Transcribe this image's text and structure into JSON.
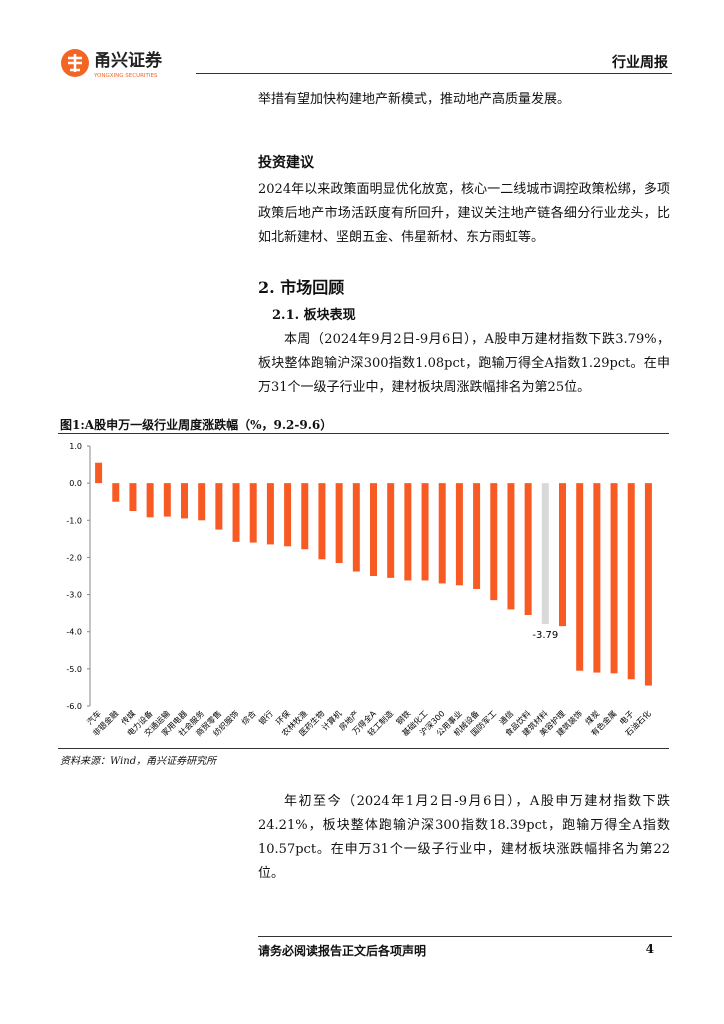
{
  "header": {
    "company": "甬兴证券",
    "company_en": "YONGXING SECURITIES",
    "report_type": "行业周报"
  },
  "body": {
    "intro": "举措有望加快构建地产新模式，推动地产高质量发展。",
    "heading_1": "投资建议",
    "paragraph_1": "2024年以来政策面明显优化放宽，核心一二线城市调控政策松绑，多项政策后地产市场活跃度有所回升，建议关注地产链各细分行业龙头，比如北新建材、坚朗五金、伟星新材、东方雨虹等。",
    "heading_2": "2. 市场回顾",
    "heading_3": "2.1. 板块表现",
    "paragraph_2": "本周（2024年9月2日-9月6日），A股申万建材指数下跌3.79%，板块整体跑输沪深300指数1.08pct，跑输万得全A指数1.29pct。在申万31个一级子行业中，建材板块周涨跌幅排名为第25位。",
    "source": "资料来源：Wind，甬兴证券研究所",
    "paragraph_3": "年初至今（2024年1月2日-9月6日），A股申万建材指数下跌24.21%，板块整体跑输沪深300指数18.39pct，跑输万得全A指数10.57pct。在申万31个一级子行业中，建材板块涨跌幅排名为第22位。"
  },
  "chart_data": {
    "type": "bar",
    "title": "图1:A股申万一级行业周度涨跌幅（%，9.2-9.6）",
    "categories": [
      "汽车",
      "非银金融",
      "传媒",
      "电力设备",
      "交通运输",
      "家用电器",
      "社会服务",
      "商贸零售",
      "纺织服饰",
      "综合",
      "银行",
      "环保",
      "农林牧渔",
      "医药生物",
      "计算机",
      "房地产",
      "万得全A",
      "轻工制造",
      "钢铁",
      "基础化工",
      "沪深300",
      "公用事业",
      "机械设备",
      "国防军工",
      "通信",
      "食品饮料",
      "建筑材料",
      "美容护理",
      "建筑装饰",
      "煤炭",
      "有色金属",
      "电子",
      "石油石化"
    ],
    "values": [
      0.55,
      -0.5,
      -0.75,
      -0.92,
      -0.9,
      -0.95,
      -1.0,
      -1.25,
      -1.58,
      -1.6,
      -1.65,
      -1.7,
      -1.78,
      -2.05,
      -2.15,
      -2.38,
      -2.5,
      -2.55,
      -2.62,
      -2.62,
      -2.7,
      -2.75,
      -2.85,
      -3.15,
      -3.4,
      -3.55,
      -3.79,
      -3.85,
      -5.05,
      -5.1,
      -5.12,
      -5.28,
      -5.45
    ],
    "value_labels": [
      null,
      null,
      null,
      null,
      null,
      null,
      null,
      null,
      null,
      null,
      null,
      null,
      null,
      null,
      null,
      null,
      null,
      null,
      null,
      null,
      null,
      null,
      null,
      null,
      null,
      null,
      "-3.79",
      null,
      null,
      null,
      null,
      null,
      null
    ],
    "colors": [
      "#f85a24",
      "#f85a24",
      "#f85a24",
      "#f85a24",
      "#f85a24",
      "#f85a24",
      "#f85a24",
      "#f85a24",
      "#f85a24",
      "#f85a24",
      "#f85a24",
      "#f85a24",
      "#f85a24",
      "#f85a24",
      "#f85a24",
      "#f85a24",
      "#f85a24",
      "#f85a24",
      "#f85a24",
      "#f85a24",
      "#f85a24",
      "#f85a24",
      "#f85a24",
      "#f85a24",
      "#f85a24",
      "#f85a24",
      "#d9d9d9",
      "#f85a24",
      "#f85a24",
      "#f85a24",
      "#f85a24",
      "#f85a24",
      "#f85a24"
    ],
    "ylim": [
      -6,
      1
    ],
    "yticks": [
      {
        "value": 1,
        "label": "1.0"
      },
      {
        "value": 0,
        "label": "0.0"
      },
      {
        "value": -1,
        "label": "-1.0"
      },
      {
        "value": -2,
        "label": "-2.0"
      },
      {
        "value": -3,
        "label": "-3.0"
      },
      {
        "value": -4,
        "label": "-4.0"
      },
      {
        "value": -5,
        "label": "-5.0"
      },
      {
        "value": -6,
        "label": "-6.0"
      }
    ],
    "grid": false
  },
  "footer": {
    "disclaimer": "请务必阅读报告正文后各项声明",
    "page": "4"
  }
}
